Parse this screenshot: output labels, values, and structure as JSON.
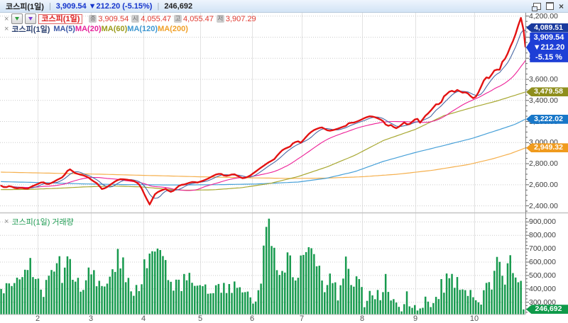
{
  "window": {
    "title_symbol": "코스피(1일)",
    "separator": "|",
    "quote_summary": "3,909.54 ▼212.20 (-5.15%)",
    "volume": "246,692"
  },
  "legend_price": {
    "remove_label": "×",
    "series_box_label": "코스피(1일)",
    "items": [
      {
        "badge": "종",
        "value": "3,909.54"
      },
      {
        "badge": "시",
        "value": "4,055.47"
      },
      {
        "badge": "고",
        "value": "4,055.47"
      },
      {
        "badge": "저",
        "value": "3,907.29"
      }
    ]
  },
  "legend_ma": {
    "remove_label": "×",
    "series_label": "코스피(1일)",
    "items": [
      {
        "label": "MA(5)",
        "color": "#3a57a7"
      },
      {
        "label": "MA(20)",
        "color": "#e5239b"
      },
      {
        "label": "MA(60)",
        "color": "#9a9a1a"
      },
      {
        "label": "MA(120)",
        "color": "#3e97d1"
      },
      {
        "label": "MA(200)",
        "color": "#f0a028"
      }
    ]
  },
  "legend_volume": {
    "remove_label": "×",
    "label": "코스피(1일) 거래량",
    "color": "#1e9b52"
  },
  "axis_badges": {
    "ma5": {
      "text": "4,089.51",
      "value": 4089.51,
      "color": "#1a3a9e"
    },
    "price_tag": {
      "price": "3,909.54",
      "change": "▼212.20",
      "pct": "-5.15 %",
      "value": 3909.54,
      "color": "#1e3fd6"
    },
    "ma60": {
      "text": "3,479.58",
      "value": 3479.58,
      "color": "#8f8f1d"
    },
    "ma120": {
      "text": "3,222.02",
      "value": 3222.02,
      "color": "#1877c8"
    },
    "ma200": {
      "text": "2,949.32",
      "value": 2949.32,
      "color": "#f09b1e"
    },
    "volume": {
      "text": "246,692",
      "value": 246692,
      "color": "#0f9a4a"
    }
  },
  "chart_data": {
    "type": "line+bar",
    "title": "코스피(1일)",
    "legend_position": "top-left-overlay",
    "grid": true,
    "price_axis": {
      "min": 2400,
      "max": 4200,
      "step": 200,
      "labels": [
        "4,200.00",
        "4,000.00",
        "3,800.00",
        "3,600.00",
        "3,400.00",
        "3,200.00",
        "3,000.00",
        "2,800.00",
        "2,600.00",
        "2,400.00"
      ],
      "values": [
        4200,
        4000,
        3800,
        3600,
        3400,
        3200,
        3000,
        2800,
        2600,
        2400
      ]
    },
    "volume_axis": {
      "min": 300000,
      "max": 900000,
      "step": 100000,
      "labels": [
        "900,000",
        "800,000",
        "700,000",
        "600,000",
        "500,000",
        "400,000",
        "300,000"
      ],
      "values": [
        900000,
        800000,
        700000,
        600000,
        500000,
        400000,
        300000
      ]
    },
    "x_axis": {
      "labels": [
        "2",
        "3",
        "4",
        "5",
        "6",
        "7",
        "8",
        "9",
        "10"
      ],
      "positions": [
        53,
        128,
        202,
        282,
        355,
        425,
        510,
        585,
        668
      ]
    },
    "last": {
      "price": 3909.54,
      "volume": 246692
    },
    "series_colors": {
      "price": "#e31212",
      "ma5": "#4a69a5",
      "ma20": "#ed1e96",
      "ma60": "#a8a832",
      "ma120": "#47a0d8",
      "ma200": "#f5b04e",
      "bars": "#179a4e"
    },
    "bar_count": 198,
    "price_keypoints": [
      [
        0,
        2596
      ],
      [
        7,
        2572
      ],
      [
        14,
        2590
      ],
      [
        22,
        2565
      ],
      [
        30,
        2572
      ],
      [
        38,
        2560
      ],
      [
        45,
        2585
      ],
      [
        53,
        2607
      ],
      [
        60,
        2628
      ],
      [
        67,
        2602
      ],
      [
        74,
        2622
      ],
      [
        81,
        2648
      ],
      [
        88,
        2672
      ],
      [
        93,
        2710
      ],
      [
        97,
        2754
      ],
      [
        101,
        2735
      ],
      [
        106,
        2710
      ],
      [
        112,
        2698
      ],
      [
        118,
        2688
      ],
      [
        124,
        2672
      ],
      [
        130,
        2640
      ],
      [
        137,
        2612
      ],
      [
        144,
        2556
      ],
      [
        150,
        2575
      ],
      [
        157,
        2608
      ],
      [
        164,
        2640
      ],
      [
        170,
        2654
      ],
      [
        176,
        2650
      ],
      [
        183,
        2644
      ],
      [
        189,
        2635
      ],
      [
        195,
        2612
      ],
      [
        200,
        2560
      ],
      [
        204,
        2500
      ],
      [
        208,
        2448
      ],
      [
        211,
        2410
      ],
      [
        214,
        2455
      ],
      [
        218,
        2508
      ],
      [
        223,
        2535
      ],
      [
        228,
        2548
      ],
      [
        233,
        2562
      ],
      [
        238,
        2540
      ],
      [
        242,
        2529
      ],
      [
        248,
        2565
      ],
      [
        253,
        2596
      ],
      [
        260,
        2603
      ],
      [
        266,
        2618
      ],
      [
        272,
        2628
      ],
      [
        278,
        2621
      ],
      [
        285,
        2636
      ],
      [
        292,
        2655
      ],
      [
        299,
        2680
      ],
      [
        305,
        2700
      ],
      [
        311,
        2705
      ],
      [
        317,
        2682
      ],
      [
        323,
        2690
      ],
      [
        329,
        2703
      ],
      [
        335,
        2683
      ],
      [
        341,
        2662
      ],
      [
        347,
        2668
      ],
      [
        353,
        2690
      ],
      [
        360,
        2725
      ],
      [
        367,
        2760
      ],
      [
        373,
        2788
      ],
      [
        379,
        2815
      ],
      [
        386,
        2840
      ],
      [
        392,
        2890
      ],
      [
        398,
        2930
      ],
      [
        403,
        2948
      ],
      [
        408,
        2958
      ],
      [
        413,
        2995
      ],
      [
        419,
        3015
      ],
      [
        424,
        2998
      ],
      [
        430,
        3045
      ],
      [
        436,
        3090
      ],
      [
        442,
        3118
      ],
      [
        448,
        3135
      ],
      [
        453,
        3146
      ],
      [
        458,
        3128
      ],
      [
        463,
        3110
      ],
      [
        469,
        3118
      ],
      [
        475,
        3130
      ],
      [
        481,
        3145
      ],
      [
        487,
        3158
      ],
      [
        492,
        3190
      ],
      [
        497,
        3186
      ],
      [
        503,
        3200
      ],
      [
        509,
        3218
      ],
      [
        515,
        3238
      ],
      [
        521,
        3250
      ],
      [
        527,
        3244
      ],
      [
        533,
        3228
      ],
      [
        539,
        3208
      ],
      [
        545,
        3155
      ],
      [
        551,
        3168
      ],
      [
        557,
        3132
      ],
      [
        563,
        3155
      ],
      [
        569,
        3192
      ],
      [
        575,
        3165
      ],
      [
        581,
        3200
      ],
      [
        587,
        3235
      ],
      [
        592,
        3186
      ],
      [
        598,
        3248
      ],
      [
        604,
        3282
      ],
      [
        610,
        3330
      ],
      [
        615,
        3370
      ],
      [
        620,
        3360
      ],
      [
        625,
        3436
      ],
      [
        630,
        3465
      ],
      [
        635,
        3496
      ],
      [
        640,
        3480
      ],
      [
        645,
        3504
      ],
      [
        650,
        3472
      ],
      [
        655,
        3478
      ],
      [
        660,
        3463
      ],
      [
        664,
        3430
      ],
      [
        668,
        3416
      ],
      [
        672,
        3450
      ],
      [
        677,
        3522
      ],
      [
        682,
        3598
      ],
      [
        687,
        3630
      ],
      [
        690,
        3600
      ],
      [
        694,
        3672
      ],
      [
        699,
        3698
      ],
      [
        703,
        3675
      ],
      [
        707,
        3762
      ],
      [
        711,
        3792
      ],
      [
        714,
        3828
      ],
      [
        717,
        3878
      ],
      [
        721,
        3945
      ],
      [
        724,
        3982
      ],
      [
        727,
        4048
      ],
      [
        730,
        4112
      ],
      [
        733,
        4172
      ],
      [
        735,
        4205
      ],
      [
        737,
        4090
      ],
      [
        739,
        3985
      ],
      [
        740,
        3909.54
      ]
    ],
    "ma60_keypoints": [
      [
        0,
        2554
      ],
      [
        40,
        2556
      ],
      [
        80,
        2566
      ],
      [
        120,
        2580
      ],
      [
        160,
        2588
      ],
      [
        200,
        2580
      ],
      [
        230,
        2560
      ],
      [
        260,
        2548
      ],
      [
        300,
        2552
      ],
      [
        340,
        2572
      ],
      [
        380,
        2612
      ],
      [
        420,
        2678
      ],
      [
        460,
        2768
      ],
      [
        500,
        2880
      ],
      [
        540,
        3020
      ],
      [
        585,
        3125
      ],
      [
        625,
        3255
      ],
      [
        667,
        3337
      ],
      [
        700,
        3395
      ],
      [
        740,
        3479.58
      ]
    ],
    "ma120_keypoints": [
      [
        0,
        2630
      ],
      [
        60,
        2620
      ],
      [
        120,
        2608
      ],
      [
        180,
        2601
      ],
      [
        240,
        2598
      ],
      [
        300,
        2600
      ],
      [
        360,
        2607
      ],
      [
        420,
        2626
      ],
      [
        460,
        2662
      ],
      [
        500,
        2725
      ],
      [
        540,
        2822
      ],
      [
        585,
        2906
      ],
      [
        625,
        2972
      ],
      [
        665,
        3040
      ],
      [
        700,
        3116
      ],
      [
        725,
        3172
      ],
      [
        740,
        3222.02
      ]
    ],
    "ma200_keypoints": [
      [
        0,
        2720
      ],
      [
        70,
        2710
      ],
      [
        140,
        2700
      ],
      [
        210,
        2688
      ],
      [
        280,
        2676
      ],
      [
        350,
        2666
      ],
      [
        410,
        2660
      ],
      [
        460,
        2663
      ],
      [
        510,
        2676
      ],
      [
        560,
        2700
      ],
      [
        610,
        2738
      ],
      [
        660,
        2792
      ],
      [
        695,
        2848
      ],
      [
        720,
        2898
      ],
      [
        740,
        2949.32
      ]
    ],
    "volume_keypoints_k": [
      [
        0,
        400
      ],
      [
        6,
        360
      ],
      [
        12,
        420
      ],
      [
        18,
        380
      ],
      [
        24,
        480
      ],
      [
        30,
        560
      ],
      [
        36,
        600
      ],
      [
        42,
        560
      ],
      [
        48,
        420
      ],
      [
        54,
        500
      ],
      [
        60,
        380
      ],
      [
        66,
        420
      ],
      [
        72,
        480
      ],
      [
        78,
        560
      ],
      [
        81,
        672
      ],
      [
        85,
        540
      ],
      [
        90,
        500
      ],
      [
        95,
        560
      ],
      [
        100,
        570
      ],
      [
        106,
        480
      ],
      [
        112,
        450
      ],
      [
        118,
        420
      ],
      [
        125,
        517
      ],
      [
        130,
        560
      ],
      [
        136,
        500
      ],
      [
        142,
        420
      ],
      [
        148,
        395
      ],
      [
        154,
        430
      ],
      [
        160,
        520
      ],
      [
        165,
        647
      ],
      [
        170,
        560
      ],
      [
        175,
        560
      ],
      [
        180,
        440
      ],
      [
        186,
        400
      ],
      [
        192,
        430
      ],
      [
        198,
        465
      ],
      [
        203,
        540
      ],
      [
        208,
        620
      ],
      [
        212,
        693
      ],
      [
        217,
        660
      ],
      [
        222,
        698
      ],
      [
        227,
        670
      ],
      [
        232,
        610
      ],
      [
        238,
        520
      ],
      [
        244,
        450
      ],
      [
        250,
        400
      ],
      [
        256,
        420
      ],
      [
        262,
        500
      ],
      [
        266,
        536
      ],
      [
        272,
        510
      ],
      [
        278,
        478
      ],
      [
        284,
        430
      ],
      [
        290,
        365
      ],
      [
        296,
        380
      ],
      [
        302,
        388
      ],
      [
        308,
        450
      ],
      [
        314,
        430
      ],
      [
        318,
        372
      ],
      [
        324,
        400
      ],
      [
        330,
        432
      ],
      [
        336,
        390
      ],
      [
        342,
        356
      ],
      [
        348,
        396
      ],
      [
        354,
        360
      ],
      [
        360,
        320
      ],
      [
        366,
        420
      ],
      [
        370,
        545
      ],
      [
        376,
        900
      ],
      [
        379,
        920
      ],
      [
        383,
        716
      ],
      [
        388,
        567
      ],
      [
        393,
        465
      ],
      [
        398,
        622
      ],
      [
        403,
        587
      ],
      [
        408,
        640
      ],
      [
        413,
        474
      ],
      [
        418,
        396
      ],
      [
        423,
        567
      ],
      [
        428,
        673
      ],
      [
        433,
        700
      ],
      [
        438,
        735
      ],
      [
        443,
        630
      ],
      [
        448,
        578
      ],
      [
        453,
        465
      ],
      [
        458,
        430
      ],
      [
        463,
        535
      ],
      [
        468,
        458
      ],
      [
        473,
        380
      ],
      [
        478,
        362
      ],
      [
        483,
        396
      ],
      [
        488,
        665
      ],
      [
        493,
        430
      ],
      [
        498,
        415
      ],
      [
        503,
        508
      ],
      [
        508,
        525
      ],
      [
        513,
        300
      ],
      [
        518,
        335
      ],
      [
        523,
        330
      ],
      [
        528,
        352
      ],
      [
        533,
        372
      ],
      [
        538,
        310
      ],
      [
        543,
        457
      ],
      [
        548,
        396
      ],
      [
        553,
        335
      ],
      [
        558,
        275
      ],
      [
        563,
        248
      ],
      [
        568,
        238
      ],
      [
        573,
        335
      ],
      [
        578,
        290
      ],
      [
        583,
        317
      ],
      [
        588,
        265
      ],
      [
        593,
        255
      ],
      [
        598,
        310
      ],
      [
        603,
        330
      ],
      [
        608,
        300
      ],
      [
        613,
        352
      ],
      [
        618,
        380
      ],
      [
        623,
        448
      ],
      [
        628,
        432
      ],
      [
        633,
        560
      ],
      [
        638,
        448
      ],
      [
        643,
        457
      ],
      [
        648,
        415
      ],
      [
        653,
        410
      ],
      [
        658,
        352
      ],
      [
        663,
        370
      ],
      [
        668,
        290
      ],
      [
        673,
        310
      ],
      [
        678,
        300
      ],
      [
        683,
        415
      ],
      [
        688,
        395
      ],
      [
        693,
        410
      ],
      [
        698,
        733
      ],
      [
        703,
        543
      ],
      [
        707,
        500
      ],
      [
        711,
        415
      ],
      [
        715,
        525
      ],
      [
        719,
        595
      ],
      [
        723,
        448
      ],
      [
        727,
        430
      ],
      [
        731,
        560
      ],
      [
        734,
        465
      ],
      [
        737,
        448
      ],
      [
        740,
        246.692
      ]
    ]
  }
}
